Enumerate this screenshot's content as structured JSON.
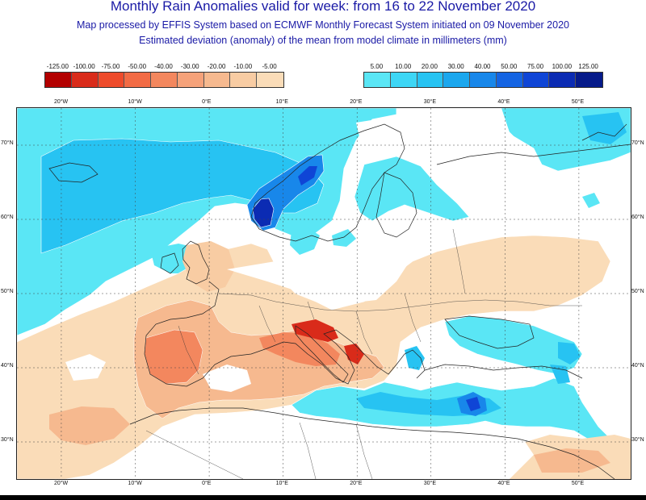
{
  "title": "Monthly Rain Anomalies valid for week: from 16 to 22 November 2020",
  "subtitle1": "Map processed by EFFIS System based on ECMWF Monthly Forecast System initiated on 09 November 2020",
  "subtitle2": "Estimated deviation (anomaly) of the mean from model climate in millimeters (mm)",
  "legend_negative": {
    "labels": [
      "-125.00",
      "-100.00",
      "-75.00",
      "-50.00",
      "-40.00",
      "-30.00",
      "-20.00",
      "-10.00",
      "-5.00"
    ],
    "colors": [
      "#b30000",
      "#d92b1a",
      "#ee4b2b",
      "#f26b45",
      "#f3875e",
      "#f5a27a",
      "#f6b98f",
      "#f8cca3",
      "#fadcb8"
    ]
  },
  "legend_positive": {
    "labels": [
      "5.00",
      "10.00",
      "20.00",
      "30.00",
      "40.00",
      "50.00",
      "75.00",
      "100.00",
      "125.00"
    ],
    "colors": [
      "#5ae6f5",
      "#3dd6f5",
      "#27c3f2",
      "#1ba7ee",
      "#1887ea",
      "#1464e3",
      "#0f45d6",
      "#0b2bb3",
      "#061a8a"
    ]
  },
  "axes": {
    "lon_top": [
      "20°W",
      "10°W",
      "0°E",
      "10°E",
      "20°E",
      "30°E",
      "40°E",
      "50°E"
    ],
    "lon_bottom": [
      "20°W",
      "10°W",
      "0°E",
      "10°E",
      "20°E",
      "30°E",
      "40°E",
      "50°E"
    ],
    "lat_left": [
      "70°N",
      "60°N",
      "50°N",
      "40°N",
      "30°N"
    ],
    "lat_right": [
      "70°N",
      "60°N",
      "50°N",
      "40°N",
      "30°N"
    ]
  },
  "map": {
    "projection": "lat-lon",
    "lon_range": [
      -26,
      57
    ],
    "lat_range": [
      25,
      75
    ],
    "colors": {
      "wet_light": "#5ae6f5",
      "wet_mid": "#27c3f2",
      "wet_strong": "#1464e3",
      "wet_extreme": "#0b2bb3",
      "dry_light": "#fadcb8",
      "dry_mid": "#f6b98f",
      "dry_strong": "#f3875e",
      "dry_extreme": "#d92b1a"
    }
  }
}
